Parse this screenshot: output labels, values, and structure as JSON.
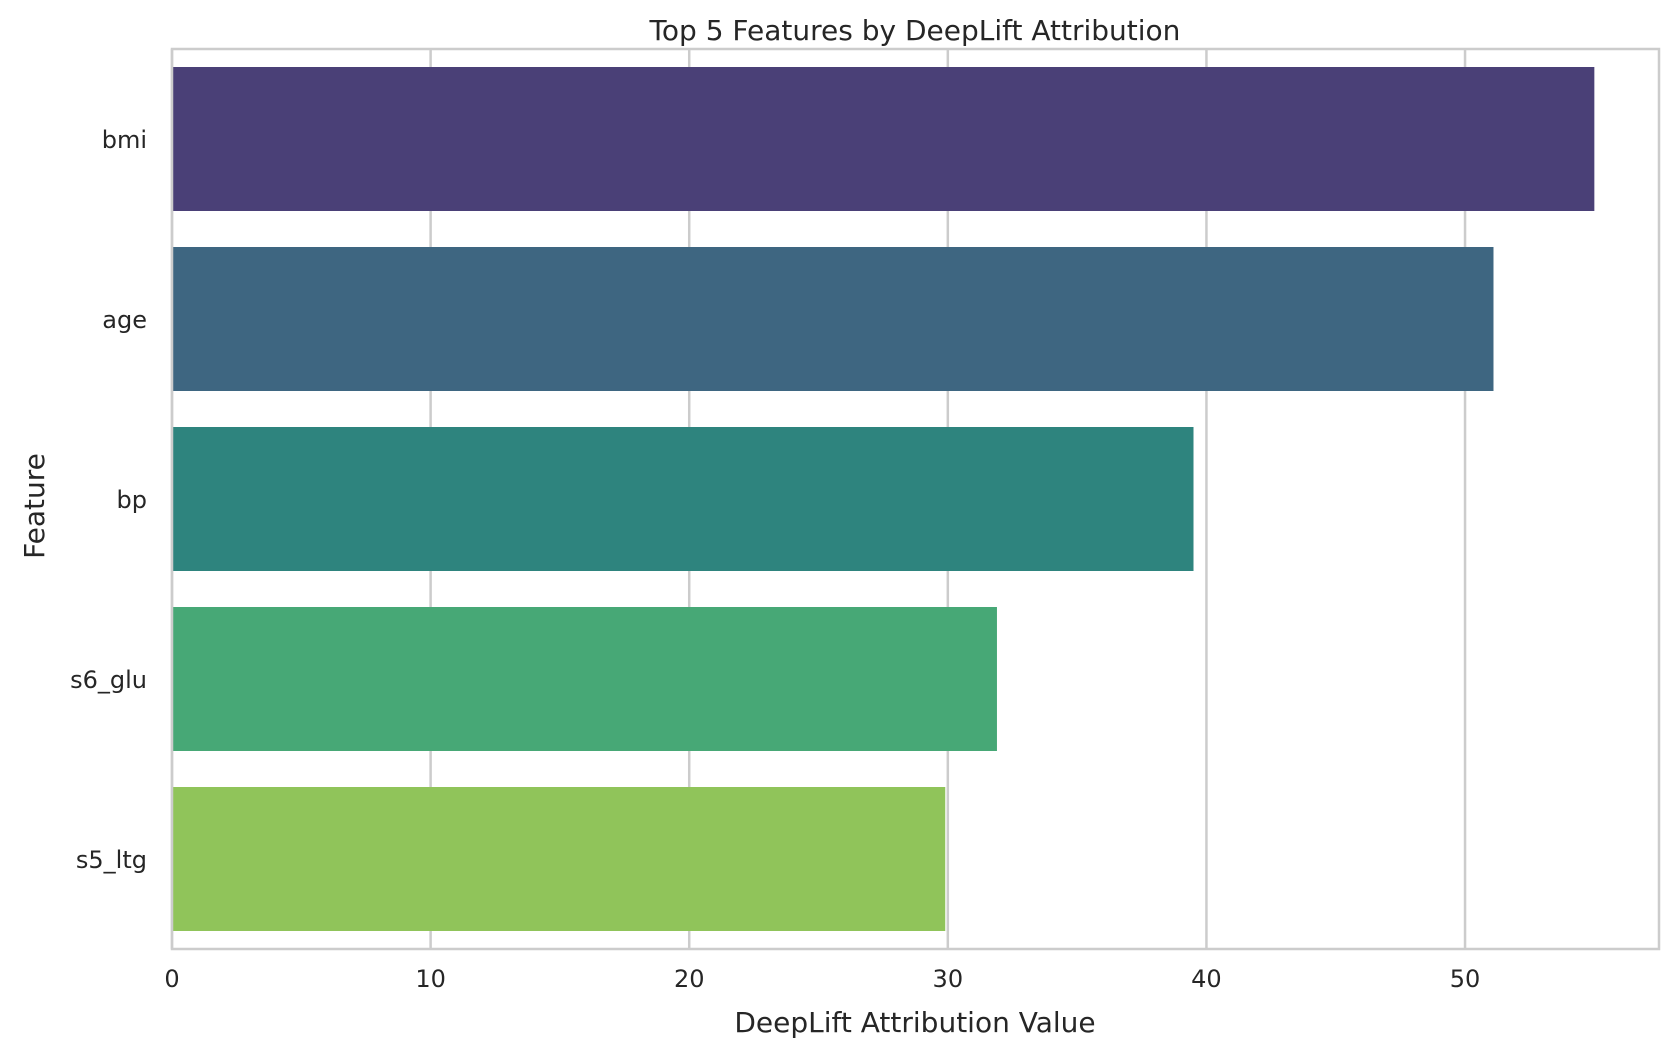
{
  "chart_data": {
    "type": "bar",
    "orientation": "horizontal",
    "title": "Top 5 Features by DeepLift Attribution",
    "xlabel": "DeepLift Attribution Value",
    "ylabel": "Feature",
    "categories": [
      "bmi",
      "age",
      "bp",
      "s6_glu",
      "s5_ltg"
    ],
    "values": [
      55.0,
      51.1,
      39.5,
      31.9,
      29.9
    ],
    "colors": [
      "#4a4077",
      "#3e6681",
      "#2e847e",
      "#47a876",
      "#90c45a"
    ],
    "xlim": [
      0,
      57.5
    ],
    "xticks": [
      0,
      10,
      20,
      30,
      40,
      50
    ],
    "grid": "x",
    "legend": "none"
  }
}
